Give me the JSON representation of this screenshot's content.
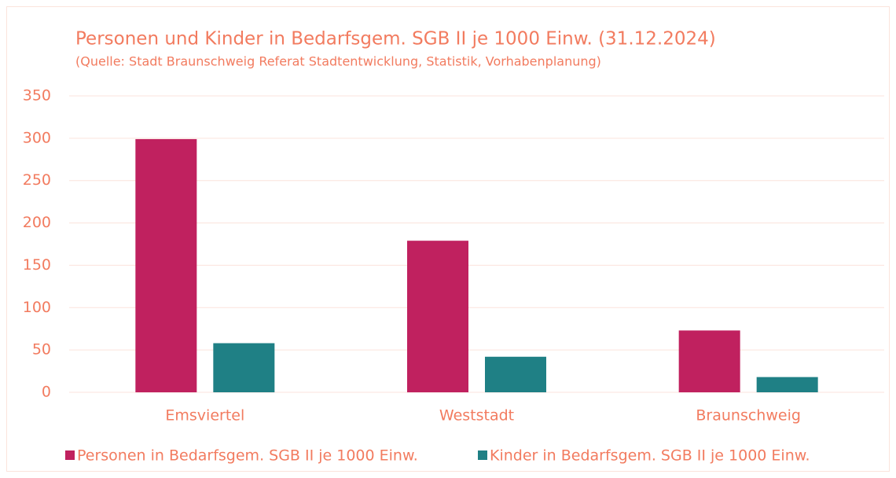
{
  "chart_data": {
    "type": "bar",
    "title": "Personen und Kinder in Bedarfsgem. SGB II je 1000 Einw. (31.12.2024)",
    "subtitle": "(Quelle: Stadt Braunschweig Referat Stadtentwicklung, Statistik, Vorhabenplanung)",
    "categories": [
      "Emsviertel",
      "Weststadt",
      "Braunschweig"
    ],
    "series": [
      {
        "name": "Personen in Bedarfsgem. SGB II je 1000 Einw.",
        "color": "#c0215f",
        "values": [
          299,
          179,
          73
        ]
      },
      {
        "name": "Kinder in Bedarfsgem. SGB II je 1000 Einw.",
        "color": "#1f8085",
        "values": [
          58,
          42,
          18
        ]
      }
    ],
    "ylim": [
      0,
      350
    ],
    "yticks": [
      0,
      50,
      100,
      150,
      200,
      250,
      300,
      350
    ],
    "grid": true,
    "legend": "bottom"
  }
}
